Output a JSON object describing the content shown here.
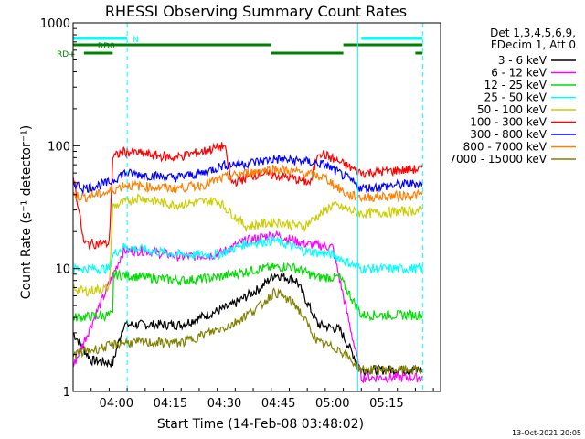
{
  "chart_data": {
    "type": "line",
    "title": "RHESSI Observing Summary Count Rates",
    "xlabel": "Start Time (14-Feb-08 03:48:02)",
    "ylabel": "Count Rate (s⁻¹ detector⁻¹)",
    "x_range_min": [
      0,
      102
    ],
    "ylim": [
      1,
      1000
    ],
    "y_scale": "log",
    "y_ticks": [
      1,
      10,
      100,
      1000
    ],
    "y_tick_labels": [
      "1",
      "10",
      "100",
      "1000"
    ],
    "x_ticks_min": [
      12,
      27,
      42,
      57,
      72,
      87
    ],
    "x_tick_labels": [
      "04:00",
      "04:15",
      "04:30",
      "04:45",
      "05:00",
      "05:15"
    ],
    "legend_header": [
      "Det 1,3,4,5,6,9,",
      "FDecim 1, Att 0"
    ],
    "legend_placement": "right",
    "series": [
      {
        "name": "3 - 6 keV",
        "color": "#000000",
        "points": [
          [
            0,
            3
          ],
          [
            5,
            1.8
          ],
          [
            11,
            1.7
          ],
          [
            14,
            3.5
          ],
          [
            30,
            3.5
          ],
          [
            44,
            5
          ],
          [
            52,
            7
          ],
          [
            56,
            9
          ],
          [
            62,
            8
          ],
          [
            68,
            3.5
          ],
          [
            74,
            3.2
          ],
          [
            80,
            1.5
          ],
          [
            97,
            1.5
          ]
        ]
      },
      {
        "name": "6 - 12 keV",
        "color": "#ff00ff",
        "points": [
          [
            0,
            1.6
          ],
          [
            14,
            14
          ],
          [
            20,
            14
          ],
          [
            30,
            12.5
          ],
          [
            40,
            13
          ],
          [
            48,
            17
          ],
          [
            56,
            19
          ],
          [
            64,
            16
          ],
          [
            72,
            15
          ],
          [
            80,
            1.3
          ],
          [
            97,
            1.3
          ]
        ]
      },
      {
        "name": "12 - 25 keV",
        "color": "#00dd00",
        "points": [
          [
            0,
            4
          ],
          [
            11,
            4.2
          ],
          [
            11,
            9
          ],
          [
            30,
            8
          ],
          [
            40,
            8.5
          ],
          [
            52,
            10
          ],
          [
            60,
            10.5
          ],
          [
            68,
            8.5
          ],
          [
            74,
            8.5
          ],
          [
            80,
            4.2
          ],
          [
            97,
            4.2
          ]
        ]
      },
      {
        "name": "25 - 50 keV",
        "color": "#00ffff",
        "points": [
          [
            0,
            10
          ],
          [
            10,
            10
          ],
          [
            11,
            13
          ],
          [
            14,
            15
          ],
          [
            30,
            13
          ],
          [
            40,
            13
          ],
          [
            48,
            16
          ],
          [
            56,
            17
          ],
          [
            64,
            14
          ],
          [
            72,
            13
          ],
          [
            80,
            10
          ],
          [
            97,
            10
          ]
        ]
      },
      {
        "name": "50 - 100 keV",
        "color": "#cccc00",
        "points": [
          [
            0,
            7
          ],
          [
            3,
            6.5
          ],
          [
            10,
            7
          ],
          [
            11,
            32
          ],
          [
            18,
            38
          ],
          [
            28,
            33
          ],
          [
            40,
            36
          ],
          [
            48,
            22
          ],
          [
            56,
            24
          ],
          [
            64,
            22
          ],
          [
            72,
            33
          ],
          [
            80,
            28
          ],
          [
            97,
            30
          ]
        ]
      },
      {
        "name": "100 - 300 keV",
        "color": "#ff0000",
        "points": [
          [
            0,
            60
          ],
          [
            3,
            16
          ],
          [
            10,
            16
          ],
          [
            11,
            80
          ],
          [
            14,
            90
          ],
          [
            28,
            80
          ],
          [
            36,
            90
          ],
          [
            42,
            100
          ],
          [
            44,
            50
          ],
          [
            52,
            60
          ],
          [
            60,
            55
          ],
          [
            66,
            50
          ],
          [
            68,
            90
          ],
          [
            80,
            60
          ],
          [
            97,
            65
          ]
        ]
      },
      {
        "name": "300 - 800 keV",
        "color": "#0000ff",
        "points": [
          [
            0,
            50
          ],
          [
            3,
            45
          ],
          [
            10,
            50
          ],
          [
            14,
            60
          ],
          [
            28,
            55
          ],
          [
            36,
            60
          ],
          [
            42,
            70
          ],
          [
            48,
            72
          ],
          [
            56,
            78
          ],
          [
            64,
            75
          ],
          [
            70,
            70
          ],
          [
            76,
            55
          ],
          [
            80,
            45
          ],
          [
            97,
            50
          ]
        ]
      },
      {
        "name": "800 - 7000 keV",
        "color": "#ff8000",
        "points": [
          [
            0,
            40
          ],
          [
            3,
            38
          ],
          [
            10,
            42
          ],
          [
            14,
            48
          ],
          [
            28,
            45
          ],
          [
            36,
            48
          ],
          [
            42,
            55
          ],
          [
            48,
            60
          ],
          [
            56,
            65
          ],
          [
            64,
            60
          ],
          [
            70,
            55
          ],
          [
            76,
            40
          ],
          [
            80,
            38
          ],
          [
            97,
            40
          ]
        ]
      },
      {
        "name": "7000 - 15000 keV",
        "color": "#808000",
        "points": [
          [
            0,
            2
          ],
          [
            14,
            2.5
          ],
          [
            30,
            2.5
          ],
          [
            44,
            3.5
          ],
          [
            52,
            5
          ],
          [
            56,
            6.5
          ],
          [
            62,
            5
          ],
          [
            68,
            2.5
          ],
          [
            74,
            2.2
          ],
          [
            80,
            1.5
          ],
          [
            97,
            1.5
          ]
        ]
      }
    ],
    "flag_rows": [
      {
        "label": "N",
        "color": "#00ffff",
        "segments": [
          [
            0,
            15
          ],
          [
            80,
            97
          ]
        ]
      },
      {
        "label": "RD0",
        "color": "#008000",
        "segments": [
          [
            0,
            55
          ],
          [
            75,
            97
          ]
        ]
      },
      {
        "label": "RD+",
        "color": "#008000",
        "segments": [
          [
            3,
            11
          ],
          [
            55,
            75
          ],
          [
            95,
            97
          ]
        ]
      }
    ],
    "vertical_lines": [
      {
        "x": 15,
        "color": "#00ffff",
        "style": "dashed"
      },
      {
        "x": 79,
        "color": "#00ffff",
        "style": "solid"
      },
      {
        "x": 97,
        "color": "#00ffff",
        "style": "dashed"
      }
    ],
    "footer_date": "13-Oct-2021 20:05"
  }
}
